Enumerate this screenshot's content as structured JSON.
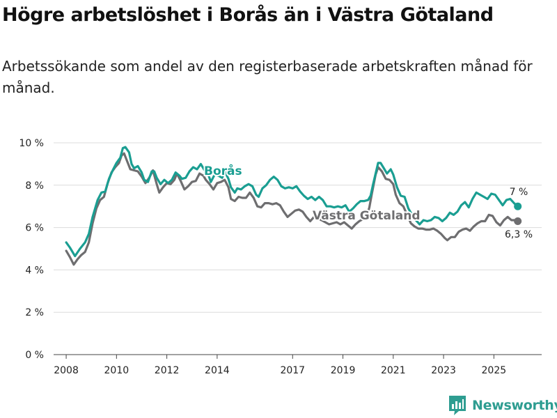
{
  "title": "Högre arbetslöshet i Borås än i Västra Götaland",
  "subtitle": "Arbetssökande som andel av den registerbaserade arbetskraften månad för månad.",
  "logo": {
    "text": "Newsworthy",
    "icon": "newsworthy-bar-chart-icon"
  },
  "colors": {
    "boras": "#1a9e92",
    "vastra": "#6e6e70",
    "grid": "#dcdcdc",
    "axis": "#444444",
    "text": "#222222",
    "label_halo": "#ffffff"
  },
  "chart_data": {
    "type": "line",
    "title": "Högre arbetslöshet i Borås än i Västra Götaland",
    "xlabel": "",
    "ylabel": "",
    "xlim": [
      2007.5,
      2026.9
    ],
    "ylim": [
      0,
      10
    ],
    "yticks": [
      0,
      2,
      4,
      6,
      8,
      10
    ],
    "ytick_labels": [
      "0 %",
      "2 %",
      "4 %",
      "6 %",
      "8 %",
      "10 %"
    ],
    "xticks": [
      2008,
      2010,
      2012,
      2014,
      2017,
      2019,
      2021,
      2023,
      2025
    ],
    "xtick_labels": [
      "2008",
      "2010",
      "2012",
      "2014",
      "2017",
      "2019",
      "2021",
      "2023",
      "2025"
    ],
    "grid": true,
    "legend": "inline labels",
    "series": [
      {
        "name": "Borås",
        "label": "Borås",
        "end_label": "7 %",
        "points": [
          [
            2008.0,
            5.3
          ],
          [
            2008.15,
            5.05
          ],
          [
            2008.35,
            4.65
          ],
          [
            2008.55,
            5.0
          ],
          [
            2008.75,
            5.3
          ],
          [
            2008.9,
            5.7
          ],
          [
            2009.05,
            6.5
          ],
          [
            2009.25,
            7.3
          ],
          [
            2009.4,
            7.65
          ],
          [
            2009.55,
            7.7
          ],
          [
            2009.7,
            8.3
          ],
          [
            2009.85,
            8.7
          ],
          [
            2010.0,
            9.05
          ],
          [
            2010.15,
            9.3
          ],
          [
            2010.25,
            9.75
          ],
          [
            2010.35,
            9.8
          ],
          [
            2010.5,
            9.55
          ],
          [
            2010.6,
            9.0
          ],
          [
            2010.7,
            8.8
          ],
          [
            2010.85,
            8.9
          ],
          [
            2011.0,
            8.6
          ],
          [
            2011.1,
            8.25
          ],
          [
            2011.25,
            8.15
          ],
          [
            2011.4,
            8.65
          ],
          [
            2011.5,
            8.65
          ],
          [
            2011.6,
            8.35
          ],
          [
            2011.75,
            8.05
          ],
          [
            2011.9,
            8.25
          ],
          [
            2012.05,
            8.1
          ],
          [
            2012.2,
            8.25
          ],
          [
            2012.35,
            8.6
          ],
          [
            2012.5,
            8.45
          ],
          [
            2012.6,
            8.3
          ],
          [
            2012.75,
            8.35
          ],
          [
            2012.9,
            8.65
          ],
          [
            2013.05,
            8.85
          ],
          [
            2013.2,
            8.75
          ],
          [
            2013.35,
            9.0
          ],
          [
            2013.5,
            8.7
          ],
          [
            2013.65,
            8.5
          ],
          [
            2013.75,
            8.15
          ],
          [
            2013.9,
            8.5
          ],
          [
            2014.05,
            8.45
          ],
          [
            2014.2,
            8.35
          ],
          [
            2014.3,
            8.65
          ],
          [
            2014.45,
            8.3
          ],
          [
            2014.55,
            7.9
          ],
          [
            2014.7,
            7.65
          ],
          [
            2014.8,
            7.85
          ],
          [
            2014.95,
            7.8
          ],
          [
            2015.1,
            7.95
          ],
          [
            2015.25,
            8.05
          ],
          [
            2015.4,
            7.95
          ],
          [
            2015.55,
            7.55
          ],
          [
            2015.65,
            7.45
          ],
          [
            2015.8,
            7.85
          ],
          [
            2015.95,
            8.0
          ],
          [
            2016.1,
            8.25
          ],
          [
            2016.25,
            8.4
          ],
          [
            2016.4,
            8.25
          ],
          [
            2016.55,
            7.95
          ],
          [
            2016.7,
            7.85
          ],
          [
            2016.85,
            7.9
          ],
          [
            2017.0,
            7.85
          ],
          [
            2017.15,
            7.95
          ],
          [
            2017.3,
            7.7
          ],
          [
            2017.45,
            7.5
          ],
          [
            2017.6,
            7.35
          ],
          [
            2017.75,
            7.45
          ],
          [
            2017.9,
            7.3
          ],
          [
            2018.05,
            7.45
          ],
          [
            2018.2,
            7.3
          ],
          [
            2018.35,
            7.0
          ],
          [
            2018.5,
            7.0
          ],
          [
            2018.65,
            6.95
          ],
          [
            2018.8,
            7.0
          ],
          [
            2018.95,
            6.95
          ],
          [
            2019.1,
            7.05
          ],
          [
            2019.25,
            6.75
          ],
          [
            2019.4,
            6.9
          ],
          [
            2019.55,
            7.1
          ],
          [
            2019.7,
            7.25
          ],
          [
            2019.85,
            7.25
          ],
          [
            2020.0,
            7.3
          ],
          [
            2020.1,
            7.5
          ],
          [
            2020.2,
            8.05
          ],
          [
            2020.3,
            8.55
          ],
          [
            2020.4,
            9.05
          ],
          [
            2020.5,
            9.05
          ],
          [
            2020.6,
            8.85
          ],
          [
            2020.75,
            8.55
          ],
          [
            2020.9,
            8.75
          ],
          [
            2021.0,
            8.5
          ],
          [
            2021.15,
            7.9
          ],
          [
            2021.3,
            7.5
          ],
          [
            2021.45,
            7.45
          ],
          [
            2021.6,
            6.9
          ],
          [
            2021.75,
            6.6
          ],
          [
            2021.9,
            6.35
          ],
          [
            2022.05,
            6.15
          ],
          [
            2022.2,
            6.35
          ],
          [
            2022.35,
            6.3
          ],
          [
            2022.5,
            6.35
          ],
          [
            2022.65,
            6.5
          ],
          [
            2022.8,
            6.45
          ],
          [
            2022.95,
            6.3
          ],
          [
            2023.1,
            6.45
          ],
          [
            2023.25,
            6.7
          ],
          [
            2023.4,
            6.6
          ],
          [
            2023.55,
            6.75
          ],
          [
            2023.7,
            7.05
          ],
          [
            2023.85,
            7.2
          ],
          [
            2024.0,
            6.95
          ],
          [
            2024.15,
            7.35
          ],
          [
            2024.3,
            7.65
          ],
          [
            2024.45,
            7.55
          ],
          [
            2024.6,
            7.45
          ],
          [
            2024.75,
            7.35
          ],
          [
            2024.9,
            7.6
          ],
          [
            2025.05,
            7.55
          ],
          [
            2025.2,
            7.3
          ],
          [
            2025.35,
            7.05
          ],
          [
            2025.5,
            7.3
          ],
          [
            2025.65,
            7.35
          ],
          [
            2025.8,
            7.15
          ],
          [
            2025.95,
            7.0
          ]
        ]
      },
      {
        "name": "Västra Götaland",
        "label": "Västra Götaland",
        "end_label": "6,3 %",
        "points": [
          [
            2008.0,
            4.9
          ],
          [
            2008.15,
            4.6
          ],
          [
            2008.3,
            4.25
          ],
          [
            2008.45,
            4.5
          ],
          [
            2008.6,
            4.7
          ],
          [
            2008.75,
            4.85
          ],
          [
            2008.9,
            5.3
          ],
          [
            2009.05,
            6.2
          ],
          [
            2009.2,
            6.9
          ],
          [
            2009.35,
            7.3
          ],
          [
            2009.5,
            7.45
          ],
          [
            2009.65,
            8.1
          ],
          [
            2009.8,
            8.6
          ],
          [
            2009.95,
            8.85
          ],
          [
            2010.1,
            9.05
          ],
          [
            2010.2,
            9.4
          ],
          [
            2010.3,
            9.5
          ],
          [
            2010.45,
            9.05
          ],
          [
            2010.55,
            8.75
          ],
          [
            2010.7,
            8.7
          ],
          [
            2010.85,
            8.65
          ],
          [
            2011.0,
            8.4
          ],
          [
            2011.15,
            8.1
          ],
          [
            2011.3,
            8.35
          ],
          [
            2011.45,
            8.7
          ],
          [
            2011.6,
            8.05
          ],
          [
            2011.7,
            7.65
          ],
          [
            2011.85,
            7.9
          ],
          [
            2012.0,
            8.1
          ],
          [
            2012.15,
            8.05
          ],
          [
            2012.3,
            8.25
          ],
          [
            2012.4,
            8.55
          ],
          [
            2012.55,
            8.2
          ],
          [
            2012.7,
            7.8
          ],
          [
            2012.85,
            7.95
          ],
          [
            2013.0,
            8.15
          ],
          [
            2013.15,
            8.2
          ],
          [
            2013.3,
            8.55
          ],
          [
            2013.45,
            8.45
          ],
          [
            2013.55,
            8.25
          ],
          [
            2013.7,
            8.05
          ],
          [
            2013.85,
            7.8
          ],
          [
            2014.0,
            8.1
          ],
          [
            2014.15,
            8.15
          ],
          [
            2014.3,
            8.25
          ],
          [
            2014.45,
            7.9
          ],
          [
            2014.55,
            7.35
          ],
          [
            2014.7,
            7.25
          ],
          [
            2014.85,
            7.45
          ],
          [
            2015.0,
            7.4
          ],
          [
            2015.15,
            7.4
          ],
          [
            2015.3,
            7.65
          ],
          [
            2015.45,
            7.4
          ],
          [
            2015.6,
            7.0
          ],
          [
            2015.75,
            6.95
          ],
          [
            2015.9,
            7.15
          ],
          [
            2016.05,
            7.15
          ],
          [
            2016.2,
            7.1
          ],
          [
            2016.35,
            7.15
          ],
          [
            2016.5,
            7.05
          ],
          [
            2016.65,
            6.75
          ],
          [
            2016.8,
            6.5
          ],
          [
            2016.95,
            6.65
          ],
          [
            2017.1,
            6.8
          ],
          [
            2017.25,
            6.85
          ],
          [
            2017.4,
            6.75
          ],
          [
            2017.55,
            6.5
          ],
          [
            2017.7,
            6.3
          ],
          [
            2017.85,
            6.5
          ],
          [
            2018.0,
            6.4
          ],
          [
            2018.15,
            6.35
          ],
          [
            2018.3,
            6.25
          ],
          [
            2018.45,
            6.15
          ],
          [
            2018.6,
            6.2
          ],
          [
            2018.75,
            6.25
          ],
          [
            2018.9,
            6.15
          ],
          [
            2019.05,
            6.25
          ],
          [
            2019.2,
            6.1
          ],
          [
            2019.35,
            5.95
          ],
          [
            2019.5,
            6.15
          ],
          [
            2019.65,
            6.3
          ],
          [
            2019.8,
            6.4
          ],
          [
            2019.95,
            6.55
          ],
          [
            2020.05,
            6.95
          ],
          [
            2020.15,
            7.6
          ],
          [
            2020.3,
            8.5
          ],
          [
            2020.4,
            8.85
          ],
          [
            2020.55,
            8.65
          ],
          [
            2020.7,
            8.3
          ],
          [
            2020.85,
            8.25
          ],
          [
            2021.0,
            8.05
          ],
          [
            2021.1,
            7.55
          ],
          [
            2021.25,
            7.15
          ],
          [
            2021.4,
            7.0
          ],
          [
            2021.55,
            6.6
          ],
          [
            2021.7,
            6.2
          ],
          [
            2021.85,
            6.05
          ],
          [
            2022.0,
            5.95
          ],
          [
            2022.15,
            5.95
          ],
          [
            2022.3,
            5.9
          ],
          [
            2022.45,
            5.9
          ],
          [
            2022.6,
            5.95
          ],
          [
            2022.75,
            5.85
          ],
          [
            2022.9,
            5.7
          ],
          [
            2023.05,
            5.5
          ],
          [
            2023.15,
            5.4
          ],
          [
            2023.3,
            5.55
          ],
          [
            2023.45,
            5.55
          ],
          [
            2023.6,
            5.8
          ],
          [
            2023.75,
            5.9
          ],
          [
            2023.9,
            5.95
          ],
          [
            2024.05,
            5.85
          ],
          [
            2024.2,
            6.05
          ],
          [
            2024.35,
            6.2
          ],
          [
            2024.5,
            6.3
          ],
          [
            2024.65,
            6.3
          ],
          [
            2024.8,
            6.6
          ],
          [
            2024.95,
            6.55
          ],
          [
            2025.1,
            6.25
          ],
          [
            2025.25,
            6.1
          ],
          [
            2025.4,
            6.35
          ],
          [
            2025.55,
            6.5
          ],
          [
            2025.7,
            6.35
          ],
          [
            2025.85,
            6.35
          ],
          [
            2025.95,
            6.3
          ]
        ]
      }
    ]
  }
}
